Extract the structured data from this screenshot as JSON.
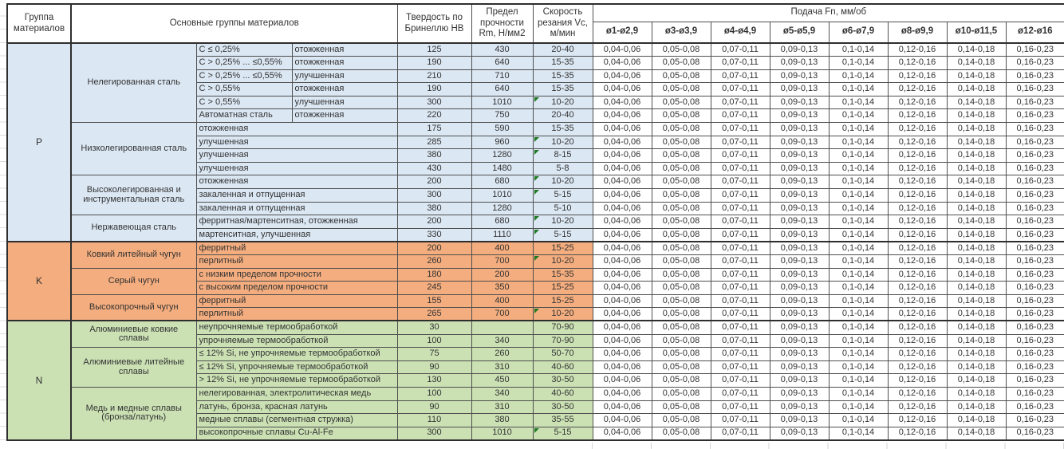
{
  "colors": {
    "group_p_bg": "#DBE7F3",
    "group_k_bg": "#F4AD7E",
    "group_n_bg": "#CBE1B4",
    "comment_triangle": "#1E7A21",
    "border_thin": "#4f4f4f",
    "border_thick": "#2e2e2e"
  },
  "header": {
    "col_group": "Группа материалов",
    "col_materials": "Основные группы материалов",
    "col_hardness": "Твердость по Бринеллю НВ",
    "col_strength": "Предел прочности Rm, Н/мм2",
    "col_speed": "Скорость резания Vc, м/мин",
    "col_feed": "Подача Fn, мм/об",
    "feed_columns": [
      "ø1-ø2,9",
      "ø3-ø3,9",
      "ø4-ø4,9",
      "ø5-ø5,9",
      "ø6-ø7,9",
      "ø8-ø9,9",
      "ø10-ø11,5",
      "ø12-ø16"
    ]
  },
  "feed_values": [
    "0,04-0,06",
    "0,05-0,08",
    "0,07-0,11",
    "0,09-0,13",
    "0,1-0,14",
    "0,12-0,16",
    "0,14-0,18",
    "0,16-0,23"
  ],
  "groups": [
    {
      "code": "P",
      "subgroups": [
        {
          "name": "Нелегированная сталь",
          "rows": [
            {
              "spec": "C ≤ 0,25%",
              "condition": "отожженная",
              "hb": "125",
              "rm": "430",
              "vc": "20-40",
              "note": false
            },
            {
              "spec": "C > 0,25% ... ≤0,55%",
              "condition": "отожженная",
              "hb": "190",
              "rm": "640",
              "vc": "15-35",
              "note": false
            },
            {
              "spec": "C > 0,25% ... ≤0,55%",
              "condition": "улучшенная",
              "hb": "210",
              "rm": "710",
              "vc": "15-35",
              "note": false
            },
            {
              "spec": "C > 0,55%",
              "condition": "отожженная",
              "hb": "190",
              "rm": "640",
              "vc": "15-35",
              "note": false
            },
            {
              "spec": "C > 0,55%",
              "condition": "улучшенная",
              "hb": "300",
              "rm": "1010",
              "vc": "10-20",
              "note": true
            },
            {
              "spec": "Автоматная сталь",
              "condition": "отожженная",
              "hb": "220",
              "rm": "750",
              "vc": "20-40",
              "note": false
            }
          ]
        },
        {
          "name": "Низколегированная сталь",
          "rows": [
            {
              "condition": "отожженная",
              "hb": "175",
              "rm": "590",
              "vc": "15-35",
              "note": false
            },
            {
              "condition": "улучшенная",
              "hb": "285",
              "rm": "960",
              "vc": "10-20",
              "note": true
            },
            {
              "condition": "улучшенная",
              "hb": "380",
              "rm": "1280",
              "vc": "8-15",
              "note": true
            },
            {
              "condition": "улучшенная",
              "hb": "430",
              "rm": "1480",
              "vc": "5-8",
              "note": false
            }
          ]
        },
        {
          "name": "Высоколегированная и инструментальная сталь",
          "rows": [
            {
              "condition": "отожженная",
              "hb": "200",
              "rm": "680",
              "vc": "10-20",
              "note": true
            },
            {
              "condition": "закаленная и отпущенная",
              "hb": "300",
              "rm": "1010",
              "vc": "5-15",
              "note": true
            },
            {
              "condition": "закаленная и отпущенная",
              "hb": "380",
              "rm": "1280",
              "vc": "5-10",
              "note": false
            }
          ]
        },
        {
          "name": "Нержавеющая сталь",
          "rows": [
            {
              "condition": "ферритная/мартенситная, отожженная",
              "hb": "200",
              "rm": "680",
              "vc": "10-20",
              "note": true
            },
            {
              "condition": "мартенситная, улучшенная",
              "hb": "330",
              "rm": "1110",
              "vc": "5-15",
              "note": true
            }
          ]
        }
      ]
    },
    {
      "code": "K",
      "subgroups": [
        {
          "name": "Ковкий литейный чугун",
          "rows": [
            {
              "condition": "ферритный",
              "hb": "200",
              "rm": "400",
              "vc": "15-25",
              "note": false
            },
            {
              "condition": "перлитный",
              "hb": "260",
              "rm": "700",
              "vc": "10-20",
              "note": true
            }
          ]
        },
        {
          "name": "Серый чугун",
          "rows": [
            {
              "condition": "с низким пределом прочности",
              "hb": "180",
              "rm": "200",
              "vc": "15-35",
              "note": false
            },
            {
              "condition": "с высоким пределом прочности",
              "hb": "245",
              "rm": "350",
              "vc": "15-25",
              "note": false
            }
          ]
        },
        {
          "name": "Высокопрочный чугун",
          "rows": [
            {
              "condition": "ферритный",
              "hb": "155",
              "rm": "400",
              "vc": "15-25",
              "note": false
            },
            {
              "condition": "перлитный",
              "hb": "265",
              "rm": "700",
              "vc": "10-20",
              "note": true
            }
          ]
        }
      ]
    },
    {
      "code": "N",
      "subgroups": [
        {
          "name": "Алюминиевые ковкие сплавы",
          "rows": [
            {
              "condition": "неупрочняемые термообработкой",
              "hb": "30",
              "rm": "",
              "vc": "70-90",
              "note": false
            },
            {
              "condition": "упрочняемые термообработкой",
              "hb": "100",
              "rm": "340",
              "vc": "70-90",
              "note": false
            }
          ]
        },
        {
          "name": "Алюминиевые литейные сплавы",
          "rows": [
            {
              "condition": "≤ 12% Si, не упрочняемые термообработкой",
              "hb": "75",
              "rm": "260",
              "vc": "50-70",
              "note": false
            },
            {
              "condition": "≤ 12% Si, упрочняемые термообработкой",
              "hb": "90",
              "rm": "310",
              "vc": "40-60",
              "note": false
            },
            {
              "condition": "> 12% Si, не упрочняемые термообработкой",
              "hb": "130",
              "rm": "450",
              "vc": "30-50",
              "note": false
            }
          ]
        },
        {
          "name": "Медь и медные сплавы (бронза/латунь)",
          "rows": [
            {
              "condition": "нелегированная, электролитическая медь",
              "hb": "100",
              "rm": "340",
              "vc": "40-60",
              "note": false
            },
            {
              "condition": "латунь, бронза, красная латунь",
              "hb": "90",
              "rm": "310",
              "vc": "30-50",
              "note": false
            },
            {
              "condition": "медные сплавы (сегментная стружка)",
              "hb": "110",
              "rm": "380",
              "vc": "35-55",
              "note": false
            },
            {
              "condition": "высокопрочные сплавы Cu-Al-Fe",
              "hb": "300",
              "rm": "1010",
              "vc": "5-15",
              "note": true
            }
          ]
        }
      ]
    }
  ]
}
